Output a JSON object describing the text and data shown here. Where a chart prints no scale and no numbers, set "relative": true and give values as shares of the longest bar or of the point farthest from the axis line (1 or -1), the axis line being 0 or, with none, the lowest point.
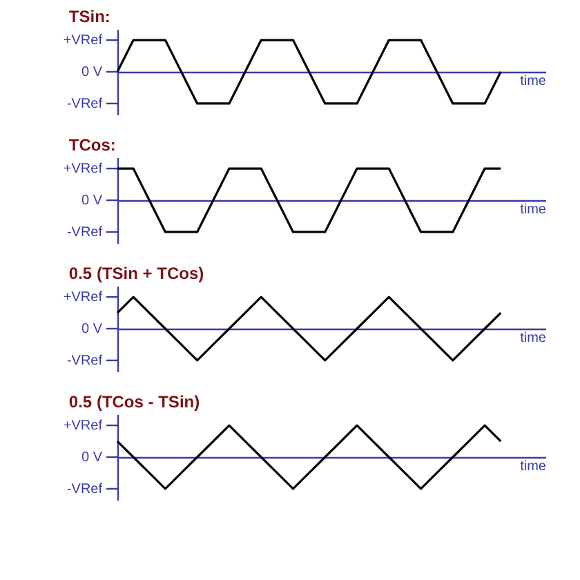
{
  "chart_data": [
    {
      "type": "line",
      "title": "TSin:",
      "xlabel": "time",
      "relative": true,
      "categories": [
        null,
        null,
        null,
        null,
        null,
        null,
        null,
        null,
        null,
        null,
        null,
        null,
        null,
        null,
        null,
        null,
        null,
        null,
        null,
        null,
        null,
        null,
        null,
        null,
        null
      ],
      "values": [
        0,
        1,
        1,
        1,
        0,
        -1,
        -1,
        -1,
        0,
        1,
        1,
        1,
        0,
        -1,
        -1,
        -1,
        0,
        1,
        1,
        1,
        0,
        -1,
        -1,
        -1,
        0
      ],
      "color": "#000000",
      "ref_lines": [
        {
          "axis": "y",
          "value": 1,
          "label": "+VRef",
          "color": "#3b3ba8"
        },
        {
          "axis": "y",
          "value": 0,
          "label": "0 V",
          "color": "#3b3ba8"
        },
        {
          "axis": "y",
          "value": -1,
          "label": "-VRef",
          "color": "#3b3ba8"
        }
      ],
      "tick_labels": "y",
      "grid": false,
      "marker": "none",
      "line_style": "solid"
    },
    {
      "type": "line",
      "title": "TCos:",
      "xlabel": "time",
      "relative": true,
      "categories": [
        null,
        null,
        null,
        null,
        null,
        null,
        null,
        null,
        null,
        null,
        null,
        null,
        null,
        null,
        null,
        null,
        null,
        null,
        null,
        null,
        null,
        null,
        null,
        null,
        null
      ],
      "values": [
        1,
        1,
        0,
        -1,
        -1,
        -1,
        0,
        1,
        1,
        1,
        0,
        -1,
        -1,
        -1,
        0,
        1,
        1,
        1,
        0,
        -1,
        -1,
        -1,
        0,
        1,
        1
      ],
      "color": "#000000",
      "ref_lines": [
        {
          "axis": "y",
          "value": 1,
          "label": "+VRef",
          "color": "#3b3ba8"
        },
        {
          "axis": "y",
          "value": 0,
          "label": "0 V",
          "color": "#3b3ba8"
        },
        {
          "axis": "y",
          "value": -1,
          "label": "-VRef",
          "color": "#3b3ba8"
        }
      ],
      "tick_labels": "y",
      "grid": false,
      "marker": "none",
      "line_style": "solid"
    },
    {
      "type": "line",
      "title": "0.5 (TSin + TCos)",
      "xlabel": "time",
      "relative": true,
      "categories": [
        null,
        null,
        null,
        null,
        null,
        null,
        null,
        null,
        null,
        null,
        null,
        null,
        null,
        null,
        null,
        null,
        null,
        null,
        null,
        null,
        null,
        null,
        null,
        null,
        null
      ],
      "values": [
        0.5,
        1,
        0.5,
        0,
        -0.5,
        -1,
        -0.5,
        0,
        0.5,
        1,
        0.5,
        0,
        -0.5,
        -1,
        -0.5,
        0,
        0.5,
        1,
        0.5,
        0,
        -0.5,
        -1,
        -0.5,
        0,
        0.5
      ],
      "color": "#000000",
      "ref_lines": [
        {
          "axis": "y",
          "value": 1,
          "label": "+VRef",
          "color": "#3b3ba8"
        },
        {
          "axis": "y",
          "value": 0,
          "label": "0 V",
          "color": "#3b3ba8"
        },
        {
          "axis": "y",
          "value": -1,
          "label": "-VRef",
          "color": "#3b3ba8"
        }
      ],
      "tick_labels": "y",
      "grid": false,
      "marker": "none",
      "line_style": "solid"
    },
    {
      "type": "line",
      "title": "0.5 (TCos - TSin)",
      "xlabel": "time",
      "relative": true,
      "categories": [
        null,
        null,
        null,
        null,
        null,
        null,
        null,
        null,
        null,
        null,
        null,
        null,
        null,
        null,
        null,
        null,
        null,
        null,
        null,
        null,
        null,
        null,
        null,
        null,
        null
      ],
      "values": [
        0.5,
        0,
        -0.5,
        -1,
        -0.5,
        0,
        0.5,
        1,
        0.5,
        0,
        -0.5,
        -1,
        -0.5,
        0,
        0.5,
        1,
        0.5,
        0,
        -0.5,
        -1,
        -0.5,
        0,
        0.5,
        1,
        0.5
      ],
      "color": "#000000",
      "ref_lines": [
        {
          "axis": "y",
          "value": 1,
          "label": "+VRef",
          "color": "#3b3ba8"
        },
        {
          "axis": "y",
          "value": 0,
          "label": "0 V",
          "color": "#3b3ba8"
        },
        {
          "axis": "y",
          "value": -1,
          "label": "-VRef",
          "color": "#3b3ba8"
        }
      ],
      "tick_labels": "y",
      "grid": false,
      "marker": "none",
      "line_style": "solid"
    }
  ]
}
